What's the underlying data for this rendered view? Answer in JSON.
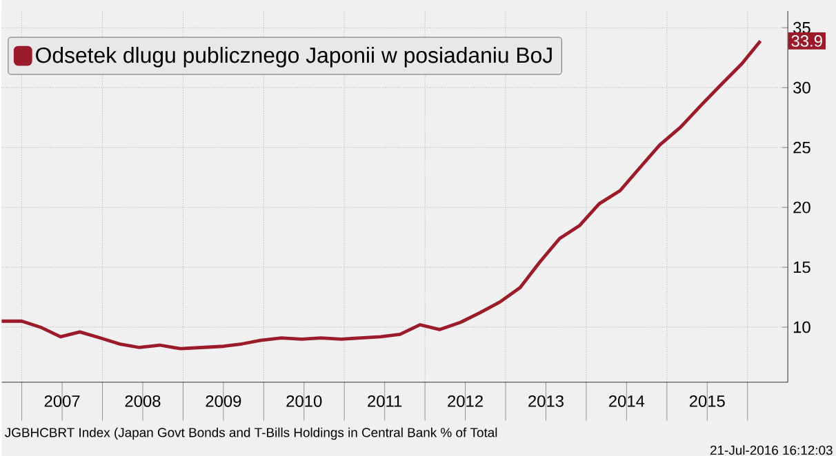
{
  "chart_data": {
    "type": "line",
    "x": [
      2006.75,
      2007.0,
      2007.23,
      2007.48,
      2007.72,
      2007.97,
      2008.21,
      2008.46,
      2008.71,
      2008.97,
      2009.23,
      2009.5,
      2009.73,
      2009.96,
      2010.22,
      2010.47,
      2010.71,
      2010.96,
      2011.2,
      2011.45,
      2011.69,
      2011.94,
      2012.18,
      2012.44,
      2012.68,
      2012.93,
      2013.18,
      2013.42,
      2013.67,
      2013.92,
      2014.16,
      2014.42,
      2014.65,
      2014.91,
      2015.17,
      2015.42,
      2015.68,
      2015.93,
      2016.16
    ],
    "series": [
      {
        "name": "Odsetek dlugu publicznego Japonii w posiadaniu BoJ",
        "color": "#9b1b2a",
        "values": [
          10.5,
          10.5,
          10.0,
          9.2,
          9.6,
          9.1,
          8.6,
          8.3,
          8.5,
          8.2,
          8.3,
          8.4,
          8.6,
          8.9,
          9.1,
          9.0,
          9.1,
          9.0,
          9.1,
          9.2,
          9.4,
          10.2,
          9.8,
          10.4,
          11.2,
          12.1,
          13.3,
          15.4,
          17.4,
          18.5,
          20.3,
          21.4,
          23.2,
          25.2,
          26.7,
          28.5,
          30.3,
          32.0,
          33.9
        ],
        "value_labels": [
          null,
          null,
          null,
          null,
          null,
          null,
          null,
          null,
          null,
          null,
          null,
          null,
          null,
          null,
          null,
          null,
          null,
          null,
          null,
          null,
          null,
          null,
          null,
          null,
          null,
          null,
          null,
          null,
          null,
          null,
          null,
          null,
          null,
          null,
          null,
          null,
          null,
          null,
          "33.9"
        ]
      }
    ],
    "xlim": [
      2006.75,
      2016.5
    ],
    "xticks": [
      {
        "value": 2007,
        "label": null
      },
      {
        "value": 2008,
        "label": null
      },
      {
        "value": 2009,
        "label": null
      },
      {
        "value": 2010,
        "label": null
      },
      {
        "value": 2011,
        "label": null
      },
      {
        "value": 2012,
        "label": null
      },
      {
        "value": 2013,
        "label": null
      },
      {
        "value": 2014,
        "label": null
      },
      {
        "value": 2015,
        "label": null
      },
      {
        "value": 2016,
        "label": null
      },
      {
        "value": 2007.5,
        "label": "2007"
      },
      {
        "value": 2008.5,
        "label": "2008"
      },
      {
        "value": 2009.5,
        "label": "2009"
      },
      {
        "value": 2010.5,
        "label": "2010"
      },
      {
        "value": 2011.5,
        "label": "2011"
      },
      {
        "value": 2012.5,
        "label": "2012"
      },
      {
        "value": 2013.5,
        "label": "2013"
      },
      {
        "value": 2014.5,
        "label": "2014"
      },
      {
        "value": 2015.5,
        "label": "2015"
      }
    ],
    "ylim": [
      5.4,
      36.4
    ],
    "yticks": [
      10,
      15,
      20,
      25,
      30,
      35
    ],
    "grid": true,
    "legend": "top left",
    "marker": "none",
    "line_style": "solid",
    "annotations": [
      "JGBHCBRT Index (Japan Govt Bonds and T-Bills Holdings in Central Bank % of Total",
      "21-Jul-2016 16:12:03"
    ]
  }
}
